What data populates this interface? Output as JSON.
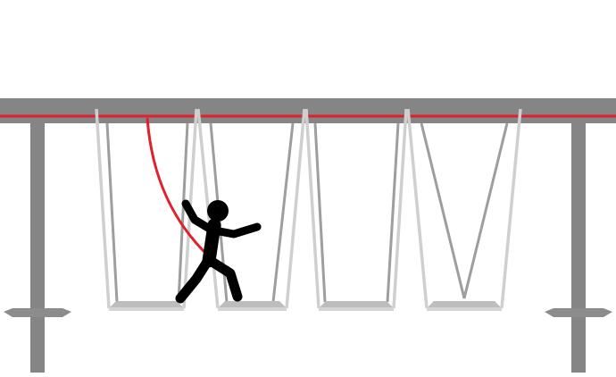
{
  "diagram": {
    "subject": "rope-course-swing-bridge",
    "elements": [
      "top-beam",
      "safety-cable",
      "support-post-left",
      "support-post-right",
      "swing-seat-1",
      "swing-seat-2",
      "swing-seat-3",
      "swing-seat-4",
      "lanyard",
      "climber-figure"
    ],
    "colors": {
      "background": "#ffffff",
      "beam": "#858585",
      "post": "#858585",
      "post_base": "#8c8c8c",
      "safety_cable": "#e0202b",
      "lanyard": "#e0202b",
      "rope_front": "#cfcfcf",
      "rope_back": "#9e9e9e",
      "seat_top": "#bdbdbd",
      "seat_front": "#d4d4d4",
      "figure": "#000000"
    }
  }
}
